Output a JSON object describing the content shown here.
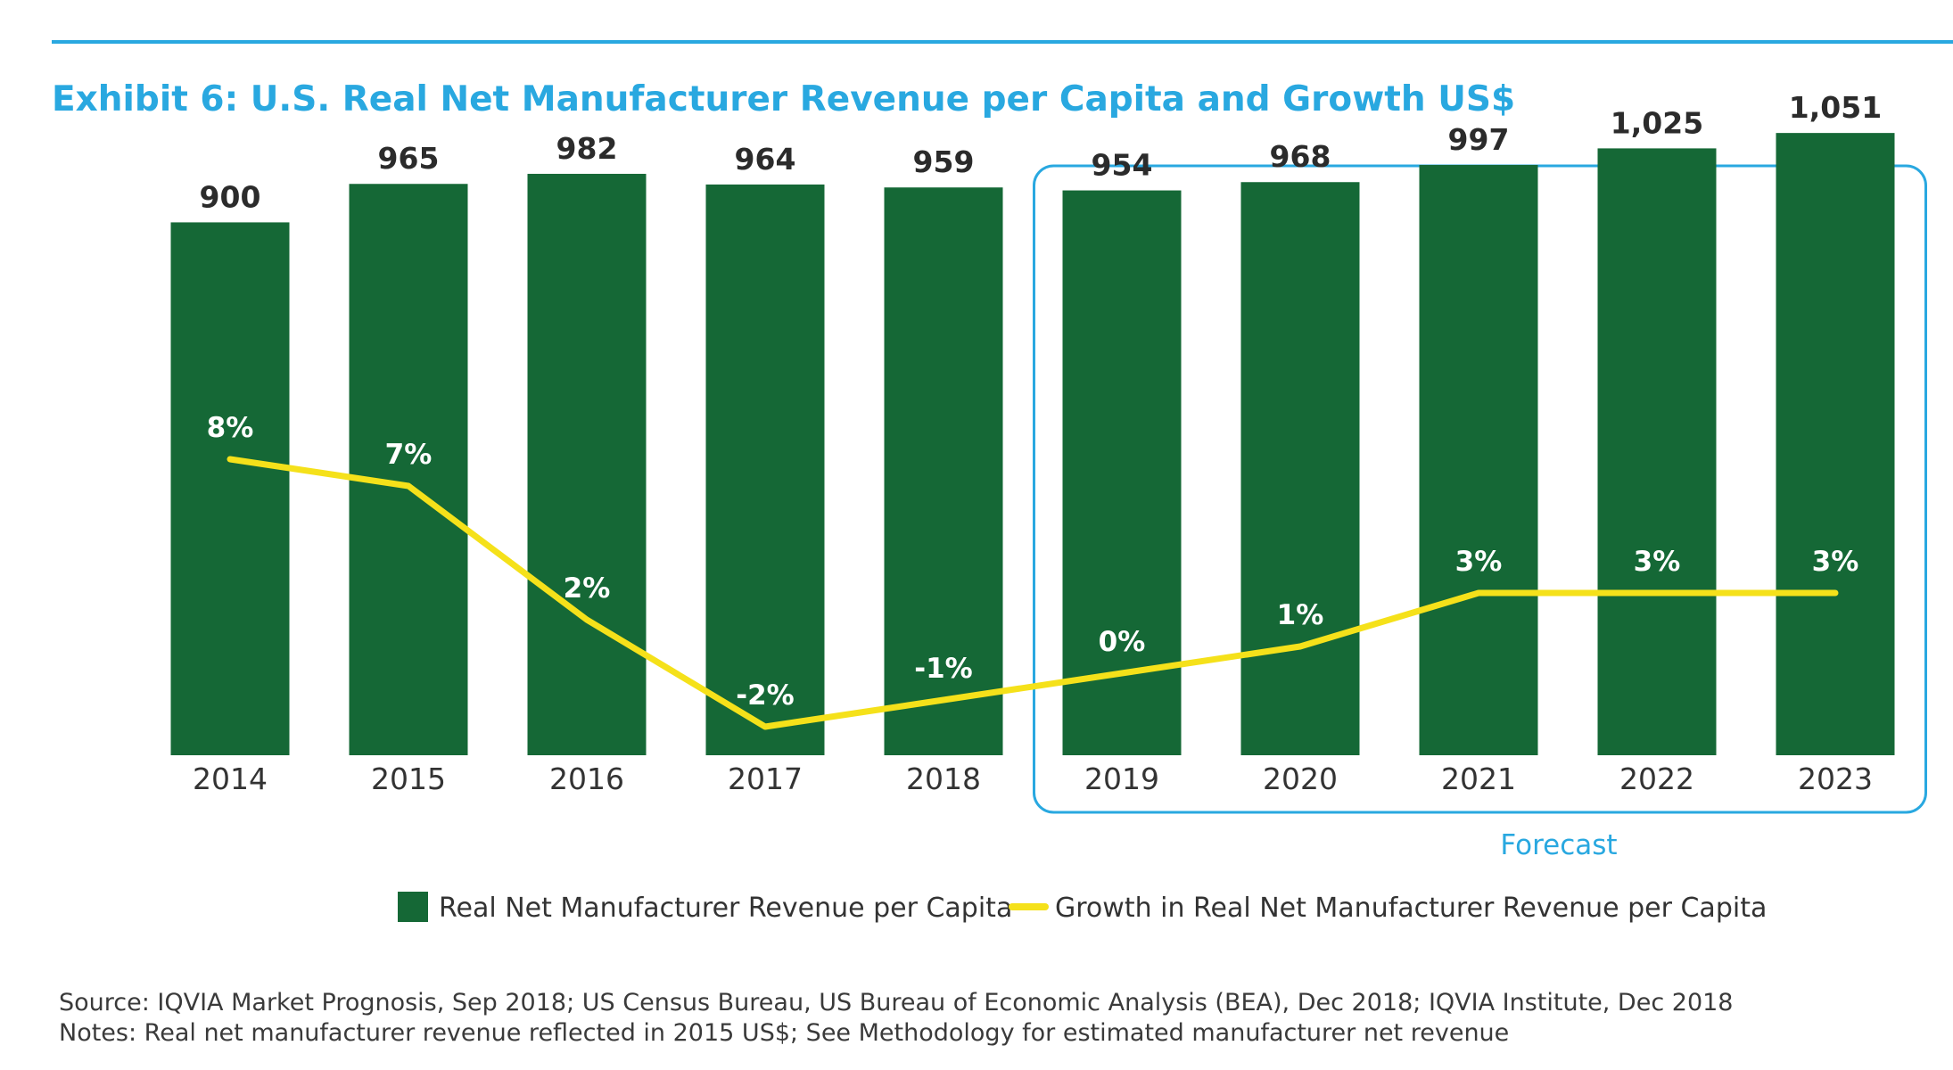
{
  "colors": {
    "rule": "#29a8e0",
    "title": "#29a8e0",
    "bar": "#156836",
    "line": "#f5e11a",
    "value_text": "#2b2b2b",
    "growth_text": "#ffffff",
    "axis_text": "#333333",
    "forecast": "#29a8e0"
  },
  "chart_data": {
    "type": "bar",
    "title": "Exhibit 6: U.S. Real Net Manufacturer Revenue per Capita and Growth US$",
    "categories": [
      "2014",
      "2015",
      "2016",
      "2017",
      "2018",
      "2019",
      "2020",
      "2021",
      "2022",
      "2023"
    ],
    "series": [
      {
        "name": "Real Net Manufacturer Revenue per Capita",
        "type": "bar",
        "values": [
          900,
          965,
          982,
          964,
          959,
          954,
          968,
          997,
          1025,
          1051
        ],
        "labels": [
          "900",
          "965",
          "982",
          "964",
          "959",
          "954",
          "968",
          "997",
          "1,025",
          "1,051"
        ]
      },
      {
        "name": "Growth in Real Net Manufacturer Revenue per Capita",
        "type": "line",
        "values": [
          8,
          7,
          2,
          -2,
          -1,
          0,
          1,
          3,
          3,
          3
        ],
        "labels": [
          "8%",
          "7%",
          "2%",
          "-2%",
          "-1%",
          "0%",
          "1%",
          "3%",
          "3%",
          "3%"
        ]
      }
    ],
    "forecast": {
      "label": "Forecast",
      "from_category": "2019",
      "to_category": "2023"
    },
    "legend_position": "bottom-center",
    "grid": false
  },
  "notes": {
    "source": "Source: IQVIA Market Prognosis, Sep 2018; US Census Bureau, US Bureau of Economic Analysis (BEA), Dec 2018; IQVIA Institute, Dec 2018",
    "notes": "Notes: Real net manufacturer revenue reflected in 2015 US$; See Methodology for estimated manufacturer net revenue"
  }
}
